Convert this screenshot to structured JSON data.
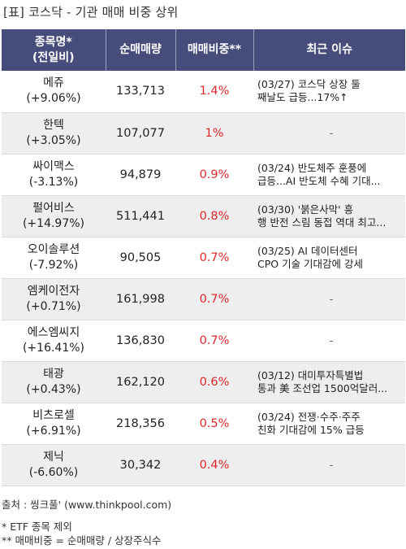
{
  "title": "[표] 코스닥 - 기관 매매 비중 상위",
  "headers": {
    "name_line1": "종목명*",
    "name_line2": "(전일비)",
    "volume": "순매매량",
    "ratio": "매매비중**",
    "issue": "최근 이슈"
  },
  "rows": [
    {
      "name": "메쥬",
      "change": "(+9.06%)",
      "volume": "133,713",
      "ratio": "1.4%",
      "issue1": "(03/27) 코스닥 상장 둘",
      "issue2": "째날도 급등...17%↑"
    },
    {
      "name": "한텍",
      "change": "(+3.05%)",
      "volume": "107,077",
      "ratio": "1%",
      "issue1": "-",
      "issue2": ""
    },
    {
      "name": "싸이맥스",
      "change": "(-3.13%)",
      "volume": "94,879",
      "ratio": "0.9%",
      "issue1": "(03/24) 반도체주 훈풍에",
      "issue2": "급등...AI 반도체 수혜 기대..."
    },
    {
      "name": "펄어비스",
      "change": "(+14.97%)",
      "volume": "511,441",
      "ratio": "0.8%",
      "issue1": "(03/30) '붉은사막' 흥",
      "issue2": "행 반전 스림 동접 역대 최고..."
    },
    {
      "name": "오이솔루션",
      "change": "(-7.92%)",
      "volume": "90,505",
      "ratio": "0.7%",
      "issue1": "(03/25) AI 데이터센터",
      "issue2": "CPO 기술 기대감에 강세"
    },
    {
      "name": "엠케이전자",
      "change": "(+0.71%)",
      "volume": "161,998",
      "ratio": "0.7%",
      "issue1": "-",
      "issue2": ""
    },
    {
      "name": "에스엠씨지",
      "change": "(+16.41%)",
      "volume": "136,830",
      "ratio": "0.7%",
      "issue1": "-",
      "issue2": ""
    },
    {
      "name": "태광",
      "change": "(+0.43%)",
      "volume": "162,120",
      "ratio": "0.6%",
      "issue1": "(03/12) 대미투자특별법",
      "issue2": "통과 美 조선업 1500억달러..."
    },
    {
      "name": "비츠로셀",
      "change": "(+6.91%)",
      "volume": "218,356",
      "ratio": "0.5%",
      "issue1": "(03/24) 전쟁·수주·주주",
      "issue2": "친화 기대감에 15% 급등"
    },
    {
      "name": "제닉",
      "change": "(-6.60%)",
      "volume": "30,342",
      "ratio": "0.4%",
      "issue1": "-",
      "issue2": ""
    }
  ],
  "footer": {
    "source": "출처 : 씽크풀' (www.thinkpool.com)",
    "note1": "* ETF 종목 제외",
    "note2": "** 매매비중 = 순매매량 / 상장주식수"
  }
}
